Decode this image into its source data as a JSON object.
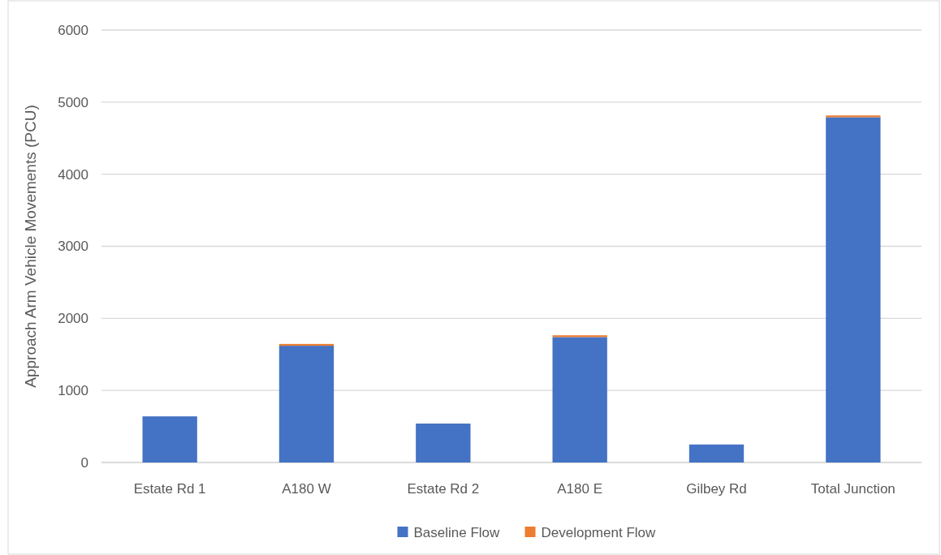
{
  "chart_data": {
    "type": "bar",
    "ylabel": "Approach Arm Vehicle Movements  (PCU)",
    "categories": [
      "Estate Rd 1",
      "A180 W",
      "Estate Rd 2",
      "A180 E",
      "Gilbey Rd",
      "Total Junction"
    ],
    "series": [
      {
        "name": "Baseline Flow",
        "color": "#4472c4",
        "values": [
          640,
          1620,
          540,
          1740,
          250,
          4790
        ]
      },
      {
        "name": "Development Flow",
        "color": "#ed7d31",
        "values": [
          0,
          25,
          0,
          25,
          0,
          25
        ]
      }
    ],
    "stacked": true,
    "ylim": [
      0,
      6000
    ],
    "yticks": [
      0,
      1000,
      2000,
      3000,
      4000,
      5000,
      6000
    ],
    "grid": "y",
    "legend": "bottom"
  }
}
